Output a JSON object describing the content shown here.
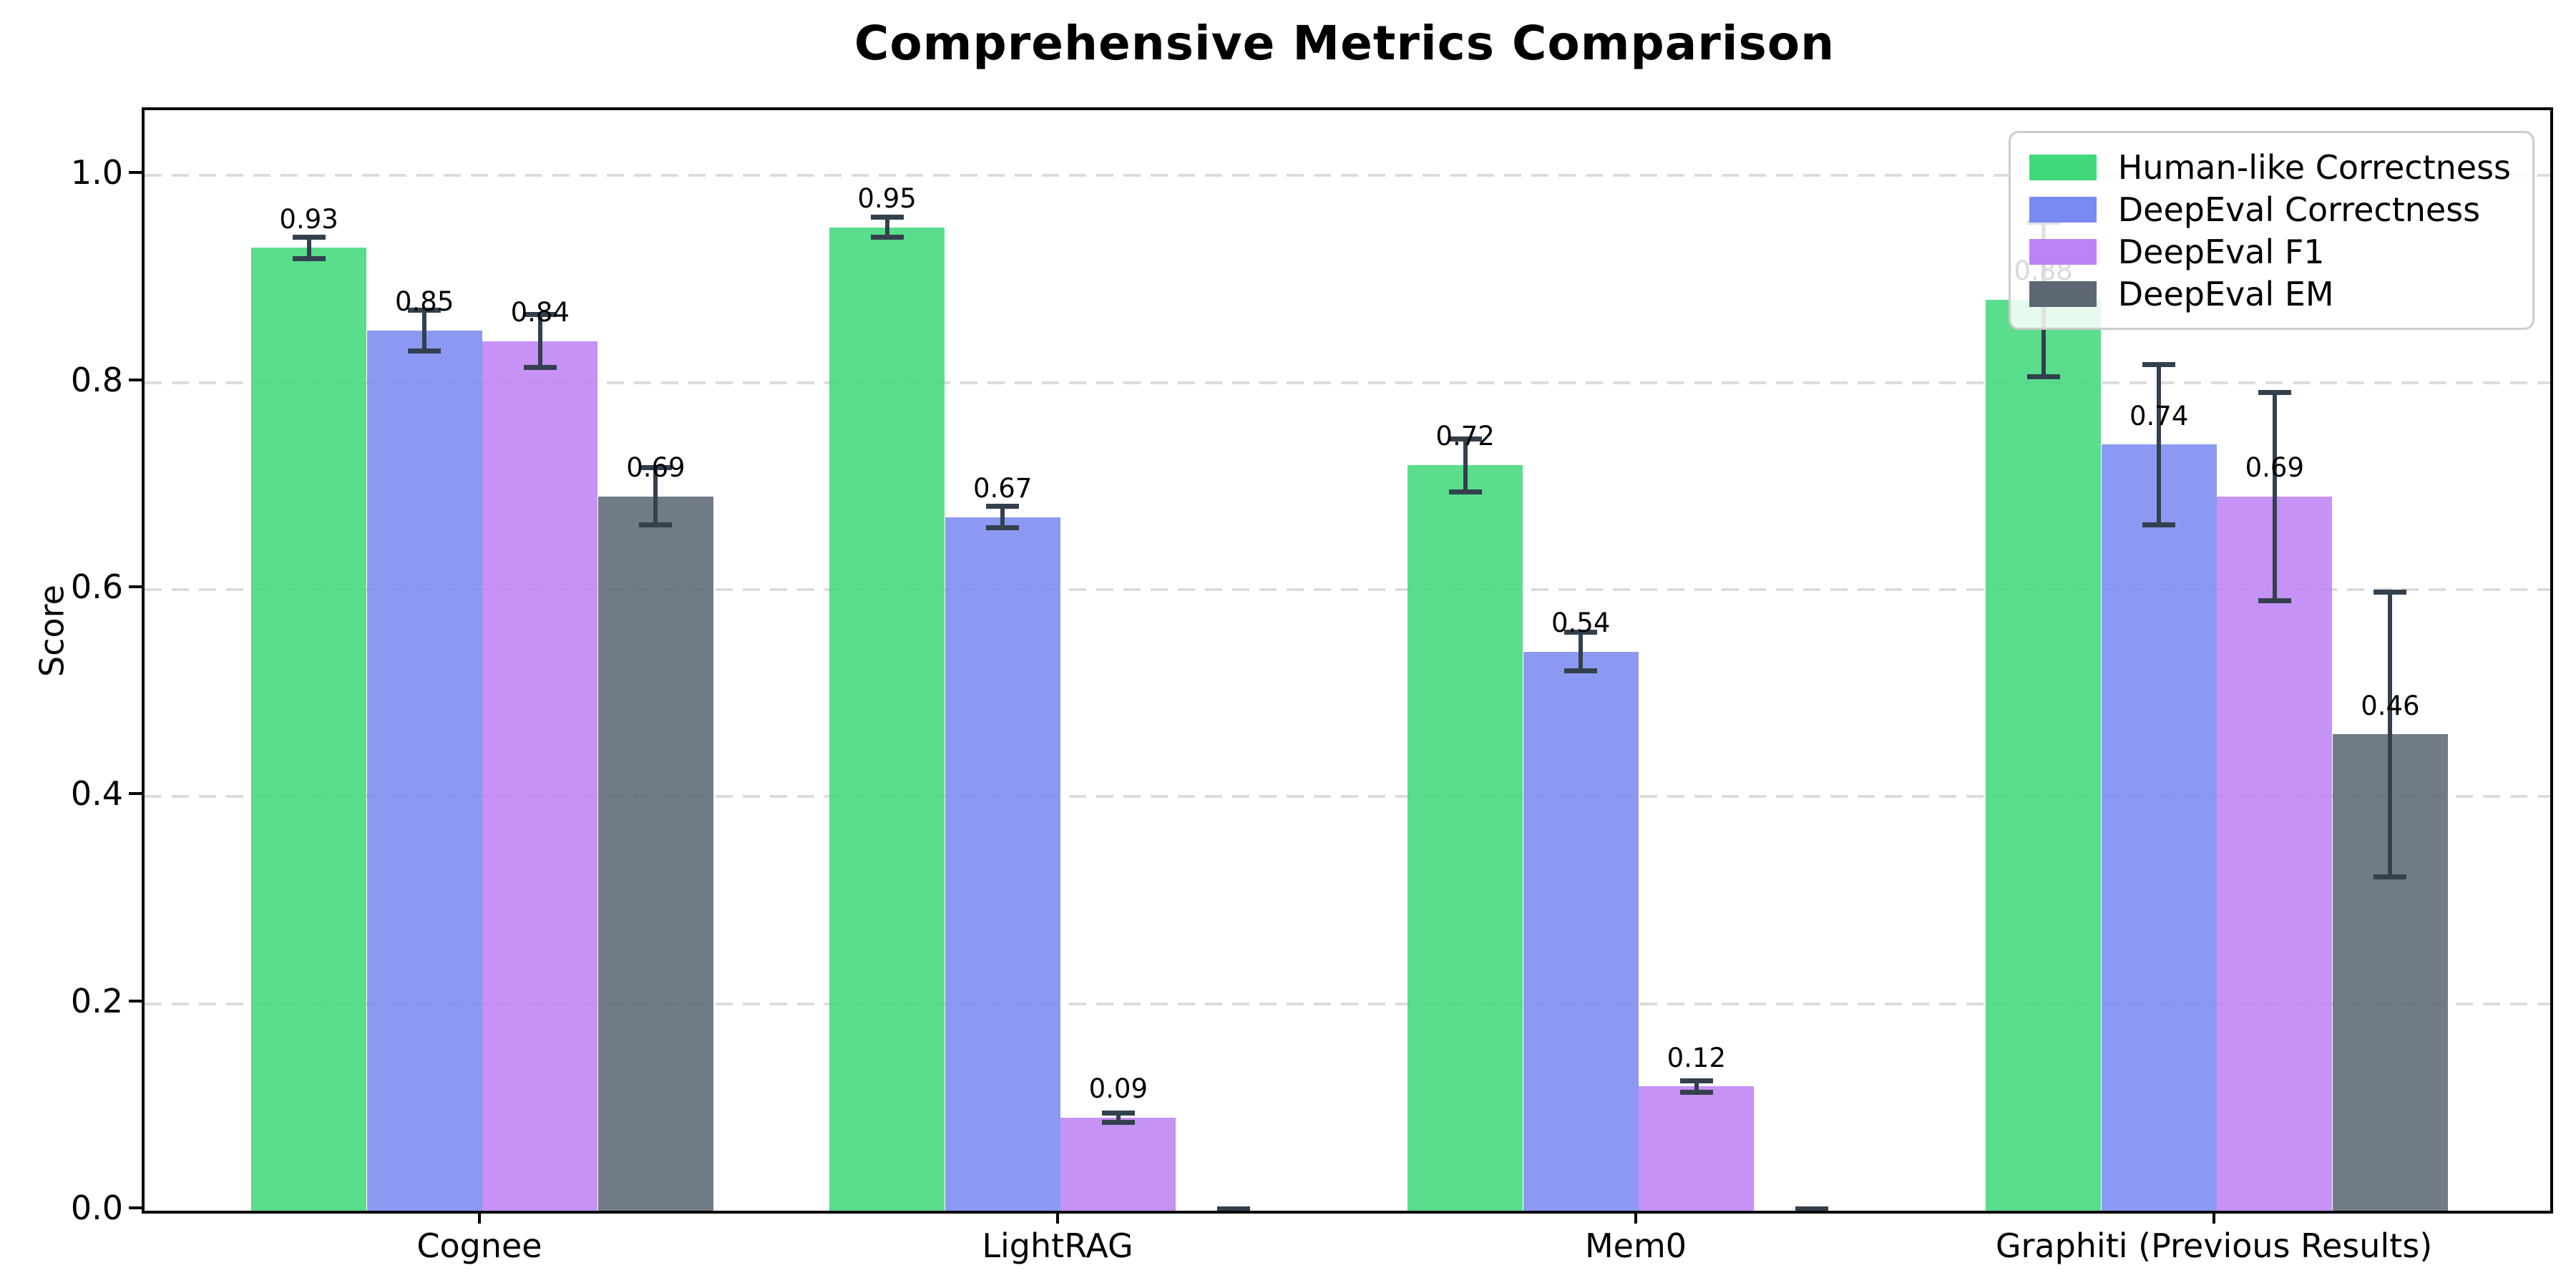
{
  "title": "Comprehensive Metrics Comparison",
  "chart_data": {
    "type": "bar",
    "title": "Comprehensive Metrics Comparison",
    "xlabel": "",
    "ylabel": "Score",
    "ylim": [
      0,
      1.063
    ],
    "yticks": [
      0.0,
      0.2,
      0.4,
      0.6,
      0.8,
      1.0
    ],
    "ytick_labels": [
      "0.0",
      "0.2",
      "0.4",
      "0.6",
      "0.8",
      "1.0"
    ],
    "grid": "horizontal-dashed",
    "grid_color": "#dcdcdc",
    "legend_position": "upper-right",
    "error_bar_color": "#33404e",
    "categories": [
      "Cognee",
      "LightRAG",
      "Mem0",
      "Graphiti (Previous Results)"
    ],
    "series": [
      {
        "name": "Human-like Correctness",
        "color": "#41d87b",
        "values": [
          0.93,
          0.95,
          0.72,
          0.88
        ],
        "errors": [
          0.013,
          0.012,
          0.028,
          0.077
        ],
        "labels": [
          "0.93",
          "0.95",
          "0.72",
          "0.88"
        ]
      },
      {
        "name": "DeepEval Correctness",
        "color": "#7b8af0",
        "values": [
          0.85,
          0.67,
          0.54,
          0.74
        ],
        "errors": [
          0.022,
          0.013,
          0.021,
          0.08
        ],
        "labels": [
          "0.85",
          "0.67",
          "0.54",
          "0.74"
        ]
      },
      {
        "name": "DeepEval F1",
        "color": "#bd82f5",
        "values": [
          0.84,
          0.09,
          0.12,
          0.69
        ],
        "errors": [
          0.028,
          0.007,
          0.008,
          0.103
        ],
        "labels": [
          "0.84",
          "0.09",
          "0.12",
          "0.69"
        ]
      },
      {
        "name": "DeepEval EM",
        "color": "#5c6773",
        "values": [
          0.69,
          0.0,
          0.0,
          0.46
        ],
        "errors": [
          0.03,
          0.004,
          0.004,
          0.14
        ],
        "labels": [
          "0.69",
          "",
          "",
          "0.46"
        ]
      }
    ]
  }
}
